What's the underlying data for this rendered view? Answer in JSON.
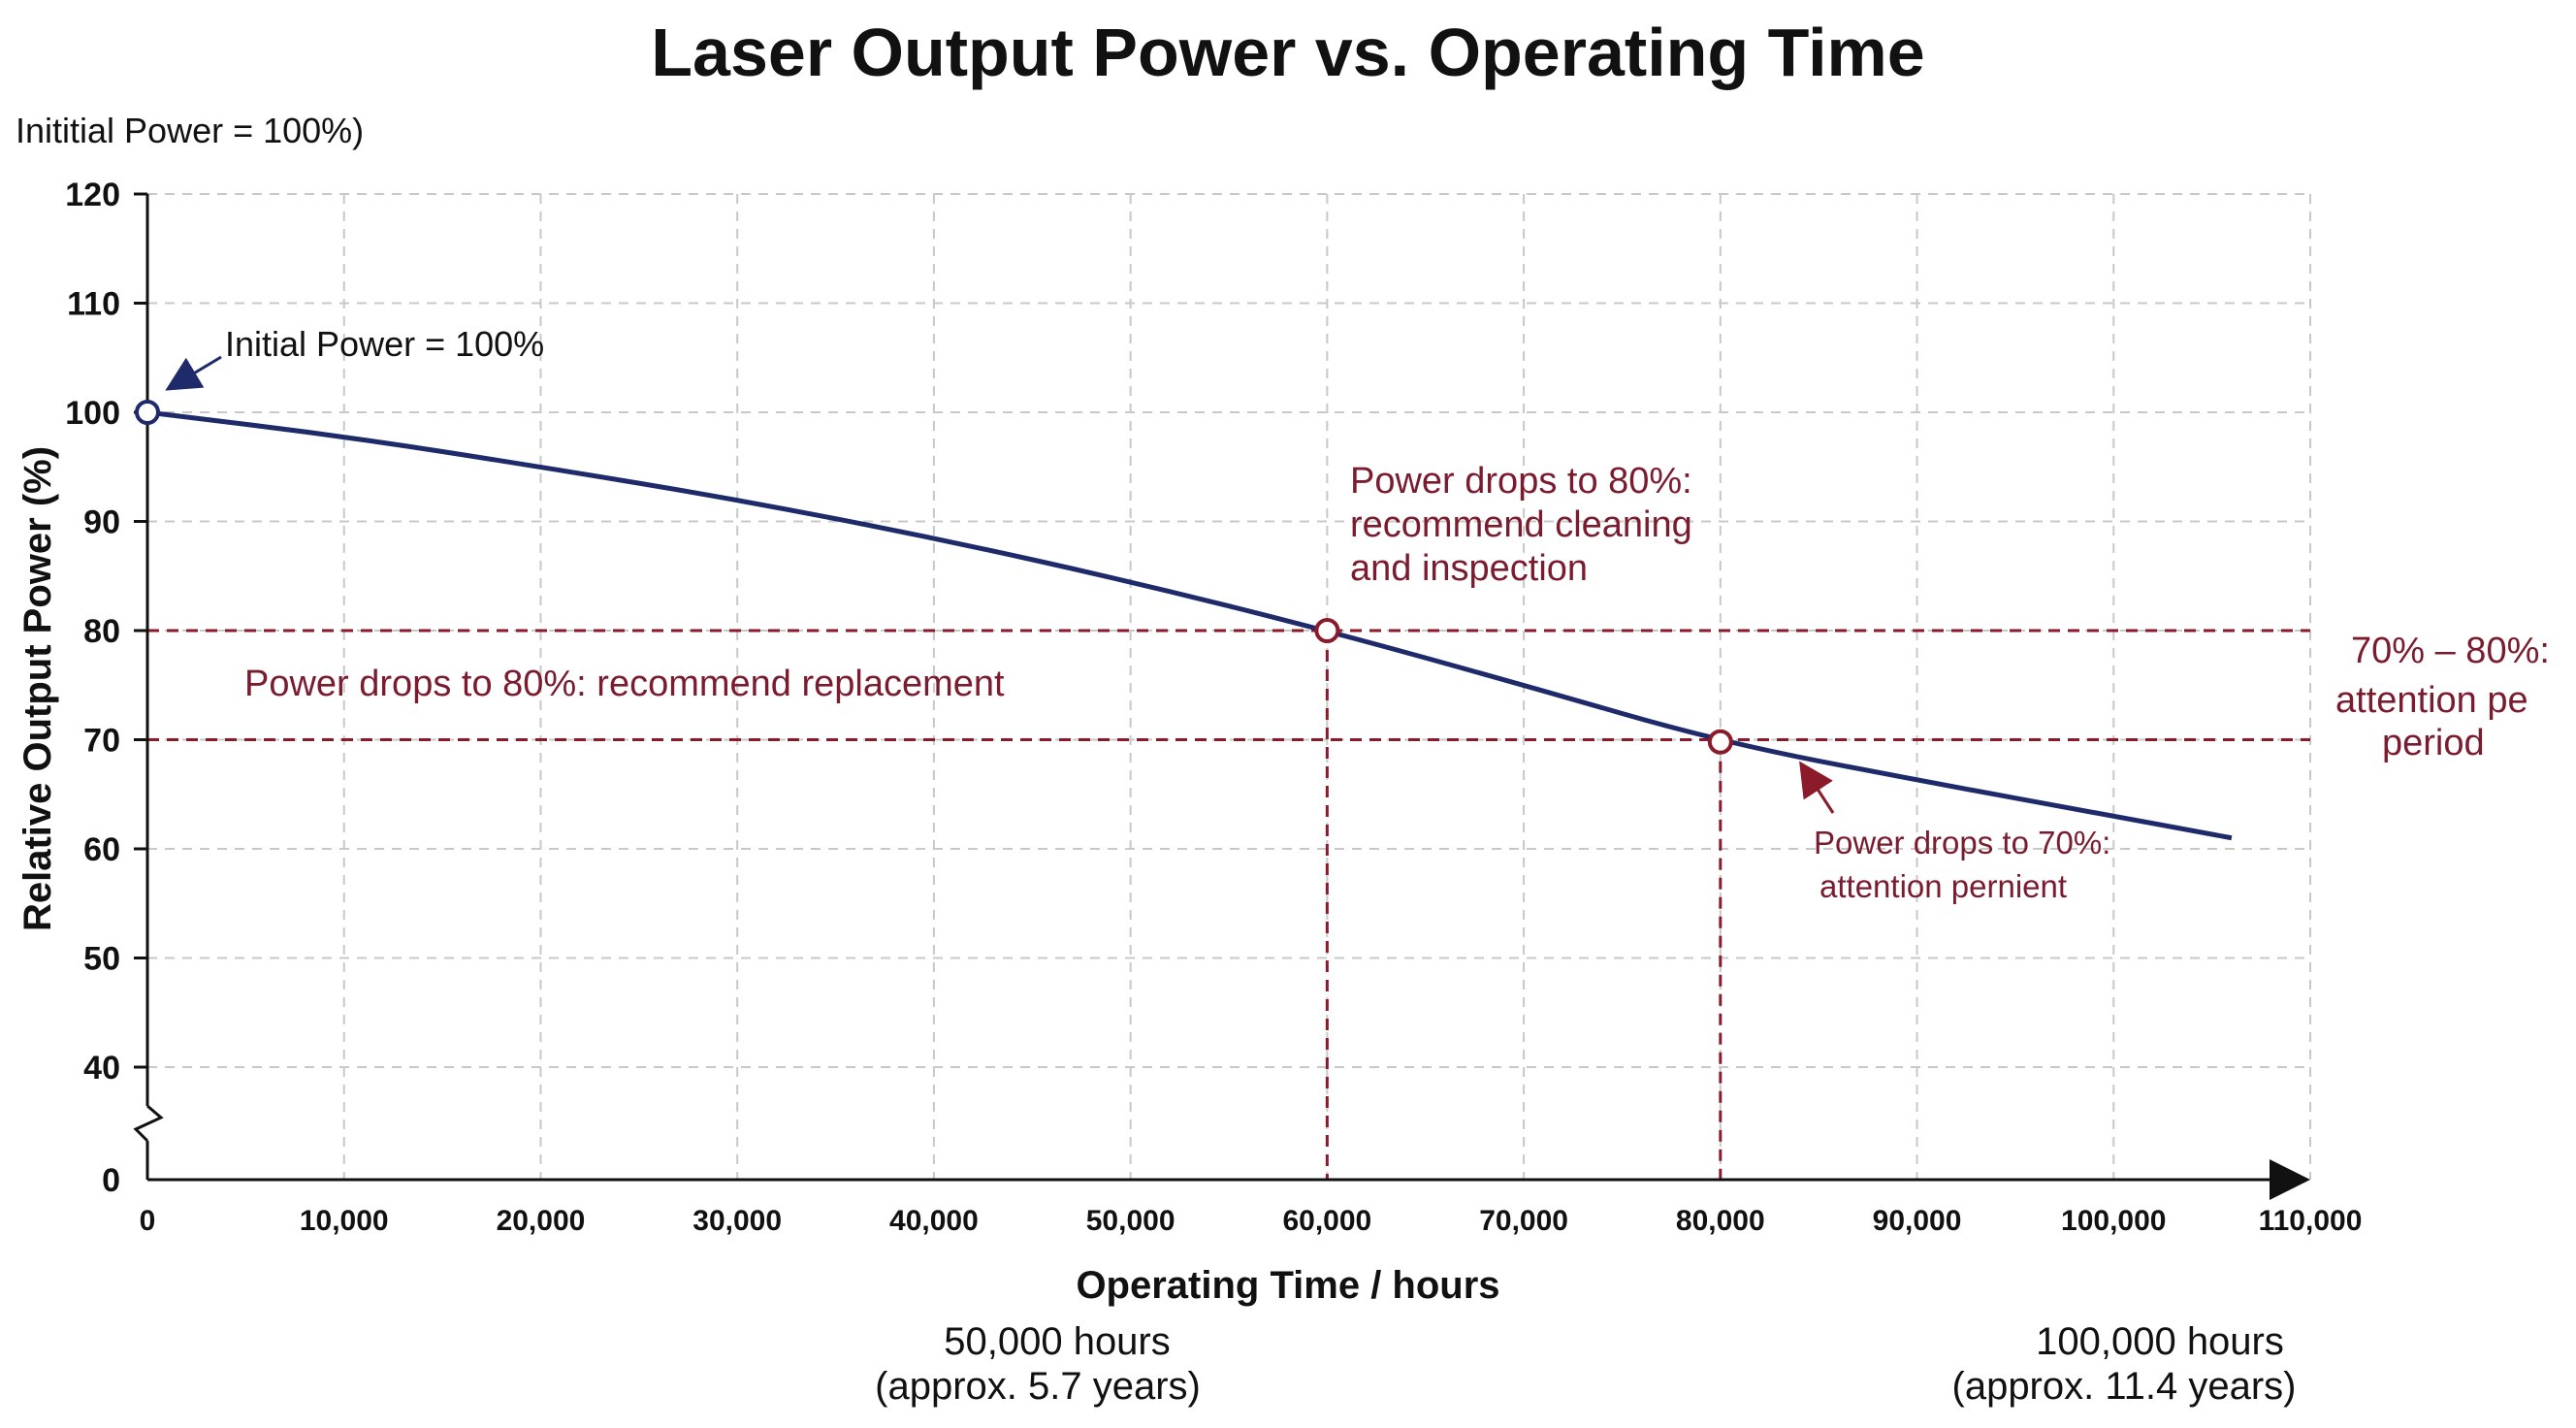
{
  "chart_data": {
    "type": "line",
    "title": "Laser Output Power vs. Operating Time",
    "subtitle": "Inititial Power = 100%)",
    "xlabel": "Operating Time / hours",
    "ylabel": "Relative Output Power (%)",
    "xlim": [
      0,
      110000
    ],
    "ylim": [
      0,
      120
    ],
    "y_axis_break": true,
    "grid": true,
    "x_ticks": [
      "0",
      "10,000",
      "20,000",
      "30,000",
      "40,000",
      "50,000",
      "60,000",
      "70,000",
      "80,000",
      "90,000",
      "100,000",
      "110,000"
    ],
    "x_tick_values": [
      0,
      10000,
      20000,
      30000,
      40000,
      50000,
      60000,
      70000,
      80000,
      90000,
      100000,
      110000
    ],
    "y_ticks": [
      "0",
      "40",
      "50",
      "60",
      "70",
      "80",
      "90",
      "100",
      "110",
      "120"
    ],
    "y_tick_values": [
      0,
      40,
      50,
      60,
      70,
      80,
      90,
      100,
      110,
      120
    ],
    "series": [
      {
        "x": [
          0,
          10000,
          20000,
          30000,
          40000,
          50000,
          60000,
          70000,
          80000,
          90000,
          100000,
          106000
        ],
        "values": [
          100,
          97.8,
          95,
          92,
          88.5,
          84.5,
          80,
          75,
          69.8,
          66.3,
          63,
          61
        ],
        "color": "#1f2a6b"
      }
    ],
    "markers": [
      {
        "x": 0,
        "y": 100,
        "color": "#1f2a6b"
      },
      {
        "x": 60000,
        "y": 80,
        "color": "#8b1a2b"
      },
      {
        "x": 80000,
        "y": 69.8,
        "color": "#8b1a2b"
      }
    ],
    "reference_lines": [
      {
        "axis": "y",
        "value": 80,
        "color": "#8b1a2b"
      },
      {
        "axis": "y",
        "value": 70,
        "color": "#8b1a2b"
      },
      {
        "axis": "x",
        "value": 60000,
        "color": "#8b1a2b"
      },
      {
        "axis": "x",
        "value": 80000,
        "color": "#8b1a2b"
      }
    ],
    "annotations": {
      "initial": "Initial Power = 100%",
      "replacement": "Power drops to 80%: recommend replacement",
      "cleaning": [
        "Power drops to 80%:",
        "recommend cleaning",
        "and inspection"
      ],
      "attention_70": [
        "Power drops to 70%:",
        "attention pernient"
      ],
      "attention_range": [
        "70% – 80%:",
        "attention pe",
        "period"
      ],
      "hours_50k": [
        "50,000 hours",
        "(approx. 5.7 years)"
      ],
      "hours_100k": [
        "100,000 hours",
        "(approx. 11.4 years)"
      ]
    },
    "colors": {
      "line": "#1f2a6b",
      "reference": "#8b1a2b",
      "grid": "#c8c8c8",
      "note": "#7a1c2e"
    }
  }
}
